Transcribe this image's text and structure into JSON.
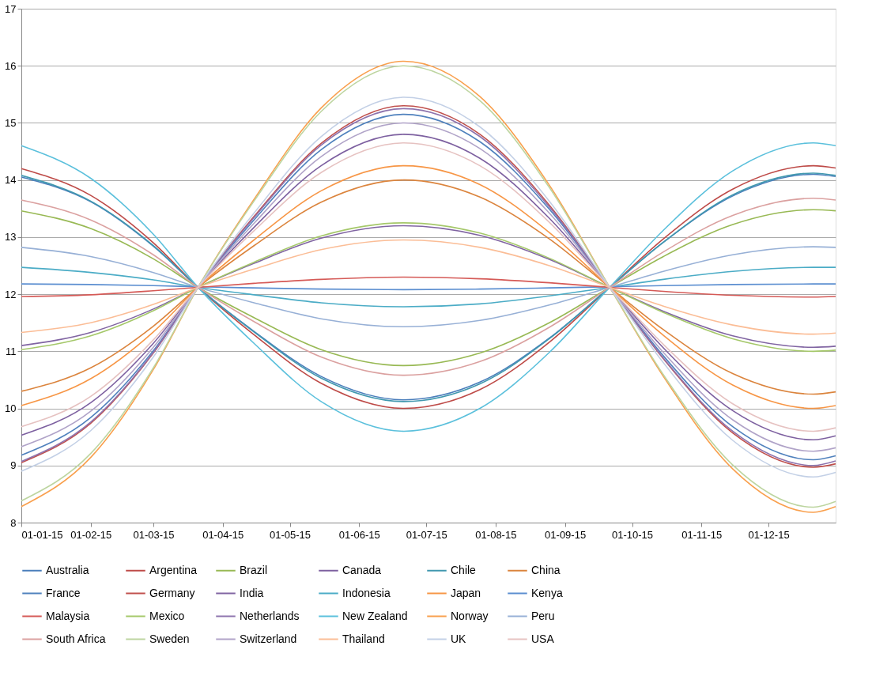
{
  "chart_data": {
    "type": "line",
    "x": [
      "2015-01-01",
      "2015-02-01",
      "2015-03-01",
      "2015-03-21",
      "2015-04-15",
      "2015-05-15",
      "2015-06-21",
      "2015-07-25",
      "2015-08-25",
      "2015-09-21",
      "2015-10-15",
      "2015-11-15",
      "2015-12-21",
      "2015-12-31"
    ],
    "xlim": [
      "2015-01-01",
      "2015-12-31"
    ],
    "xticks": [
      {
        "value": "2015-01-01",
        "label": "01-01-15"
      },
      {
        "value": "2015-02-01",
        "label": "01-02-15"
      },
      {
        "value": "2015-03-01",
        "label": "01-03-15"
      },
      {
        "value": "2015-04-01",
        "label": "01-04-15"
      },
      {
        "value": "2015-05-01",
        "label": "01-05-15"
      },
      {
        "value": "2015-06-01",
        "label": "01-06-15"
      },
      {
        "value": "2015-07-01",
        "label": "01-07-15"
      },
      {
        "value": "2015-08-01",
        "label": "01-08-15"
      },
      {
        "value": "2015-09-01",
        "label": "01-09-15"
      },
      {
        "value": "2015-10-01",
        "label": "01-10-15"
      },
      {
        "value": "2015-11-01",
        "label": "01-11-15"
      },
      {
        "value": "2015-12-01",
        "label": "01-12-15"
      }
    ],
    "ylim": [
      8,
      17
    ],
    "yticks": [
      8,
      9,
      10,
      11,
      12,
      13,
      14,
      15,
      16,
      17
    ],
    "grid": "y",
    "legend": "bottom",
    "marker": "none",
    "line_style": "solid",
    "series": [
      {
        "name": "Australia",
        "color": "#4a7ebb",
        "values": [
          14.05,
          13.62,
          12.84,
          12.12,
          11.35,
          10.56,
          10.15,
          10.46,
          11.23,
          12.12,
          12.91,
          13.72,
          14.1,
          14.06
        ]
      },
      {
        "name": "Argentina",
        "color": "#be4b48",
        "values": [
          14.2,
          13.73,
          12.9,
          12.12,
          11.29,
          10.44,
          10.0,
          10.33,
          11.16,
          12.12,
          12.97,
          13.84,
          14.25,
          14.21
        ]
      },
      {
        "name": "Brazil",
        "color": "#98b954",
        "values": [
          13.46,
          13.15,
          12.62,
          12.12,
          11.59,
          11.03,
          10.75,
          10.97,
          11.5,
          12.12,
          12.66,
          13.22,
          13.48,
          13.46
        ]
      },
      {
        "name": "Canada",
        "color": "#7d60a0",
        "values": [
          9.53,
          10.1,
          11.14,
          12.12,
          13.17,
          14.25,
          14.8,
          14.38,
          13.33,
          12.12,
          11.06,
          9.96,
          9.45,
          9.52
        ]
      },
      {
        "name": "Chile",
        "color": "#4198af",
        "values": [
          14.08,
          13.63,
          12.85,
          12.12,
          11.34,
          10.53,
          10.12,
          10.43,
          11.22,
          12.12,
          12.91,
          13.74,
          14.12,
          14.08
        ]
      },
      {
        "name": "China",
        "color": "#db843d",
        "values": [
          10.3,
          10.71,
          11.44,
          12.12,
          12.85,
          13.61,
          14.0,
          13.7,
          12.97,
          12.12,
          11.38,
          10.61,
          10.25,
          10.29
        ]
      },
      {
        "name": "France",
        "color": "#4f81bd",
        "values": [
          9.18,
          9.84,
          11.01,
          12.12,
          13.3,
          14.53,
          15.15,
          14.67,
          13.49,
          12.12,
          10.92,
          9.68,
          9.1,
          9.17
        ]
      },
      {
        "name": "Germany",
        "color": "#c0504d",
        "values": [
          9.05,
          9.74,
          10.97,
          12.12,
          13.36,
          14.64,
          15.3,
          14.8,
          13.56,
          12.12,
          10.87,
          9.57,
          8.97,
          9.03
        ]
      },
      {
        "name": "India",
        "color": "#8064a2",
        "values": [
          11.1,
          11.33,
          11.74,
          12.12,
          12.54,
          12.98,
          13.2,
          13.03,
          12.61,
          12.12,
          11.7,
          11.27,
          11.07,
          11.09
        ]
      },
      {
        "name": "Indonesia",
        "color": "#4bacc6",
        "values": [
          12.47,
          12.38,
          12.25,
          12.12,
          11.99,
          11.85,
          11.78,
          11.83,
          11.97,
          12.12,
          12.26,
          12.4,
          12.47,
          12.47
        ]
      },
      {
        "name": "Japan",
        "color": "#f79646",
        "values": [
          10.05,
          10.52,
          11.34,
          12.12,
          12.95,
          13.81,
          14.25,
          13.92,
          13.08,
          12.12,
          11.28,
          10.41,
          10.0,
          10.05
        ]
      },
      {
        "name": "Kenya",
        "color": "#5b8ed0",
        "values": [
          12.18,
          12.17,
          12.15,
          12.13,
          12.11,
          12.09,
          12.08,
          12.09,
          12.11,
          12.13,
          12.15,
          12.17,
          12.18,
          12.18
        ]
      },
      {
        "name": "Malaysia",
        "color": "#d55a57",
        "values": [
          11.96,
          11.99,
          12.06,
          12.12,
          12.19,
          12.26,
          12.3,
          12.27,
          12.2,
          12.12,
          12.05,
          11.98,
          11.95,
          11.96
        ]
      },
      {
        "name": "Mexico",
        "color": "#a5c86a",
        "values": [
          11.03,
          11.27,
          11.71,
          12.12,
          12.56,
          13.02,
          13.25,
          13.07,
          12.63,
          12.12,
          11.68,
          11.22,
          11.0,
          11.02
        ]
      },
      {
        "name": "Netherlands",
        "color": "#8e74ae",
        "values": [
          9.07,
          9.76,
          10.98,
          12.12,
          13.34,
          14.61,
          15.25,
          14.76,
          13.53,
          12.12,
          10.88,
          9.6,
          9.0,
          9.08
        ]
      },
      {
        "name": "New Zealand",
        "color": "#5bc0dc",
        "values": [
          14.6,
          14.03,
          13.05,
          12.12,
          11.14,
          10.12,
          9.6,
          10.0,
          10.98,
          12.12,
          13.12,
          14.16,
          14.65,
          14.6
        ]
      },
      {
        "name": "Norway",
        "color": "#f9a04e",
        "values": [
          8.28,
          9.14,
          10.68,
          12.12,
          13.66,
          15.26,
          16.08,
          15.46,
          13.91,
          12.12,
          10.56,
          8.94,
          8.18,
          8.28
        ]
      },
      {
        "name": "Peru",
        "color": "#97b0d6",
        "values": [
          12.82,
          12.66,
          12.38,
          12.12,
          11.85,
          11.57,
          11.43,
          11.54,
          11.81,
          12.12,
          12.4,
          12.69,
          12.83,
          12.82
        ]
      },
      {
        "name": "South Africa",
        "color": "#dba1a0",
        "values": [
          13.65,
          13.3,
          12.69,
          12.12,
          11.52,
          10.9,
          10.58,
          10.82,
          11.42,
          12.12,
          12.74,
          13.38,
          13.68,
          13.65
        ]
      },
      {
        "name": "Sweden",
        "color": "#bdd5a0",
        "values": [
          8.38,
          9.21,
          10.71,
          12.12,
          13.63,
          15.2,
          16.0,
          15.39,
          13.87,
          12.12,
          10.59,
          9.01,
          8.27,
          8.37
        ]
      },
      {
        "name": "Switzerland",
        "color": "#b0a3c8",
        "values": [
          9.33,
          9.95,
          11.07,
          12.12,
          13.24,
          14.41,
          15.0,
          14.55,
          13.42,
          12.12,
          10.98,
          9.8,
          9.25,
          9.31
        ]
      },
      {
        "name": "Thailand",
        "color": "#fbbd96",
        "values": [
          11.33,
          11.5,
          11.82,
          12.12,
          12.44,
          12.78,
          12.95,
          12.82,
          12.5,
          12.12,
          11.79,
          11.46,
          11.3,
          11.32
        ]
      },
      {
        "name": "UK",
        "color": "#c3d0e6",
        "values": [
          8.9,
          9.61,
          10.9,
          12.12,
          13.42,
          14.76,
          15.45,
          14.93,
          13.63,
          12.12,
          10.8,
          9.44,
          8.8,
          8.88
        ]
      },
      {
        "name": "USA",
        "color": "#e6c2c1",
        "values": [
          9.68,
          10.21,
          11.2,
          12.12,
          13.11,
          14.13,
          14.65,
          14.25,
          13.26,
          12.12,
          11.12,
          10.08,
          9.6,
          9.66
        ]
      }
    ]
  }
}
